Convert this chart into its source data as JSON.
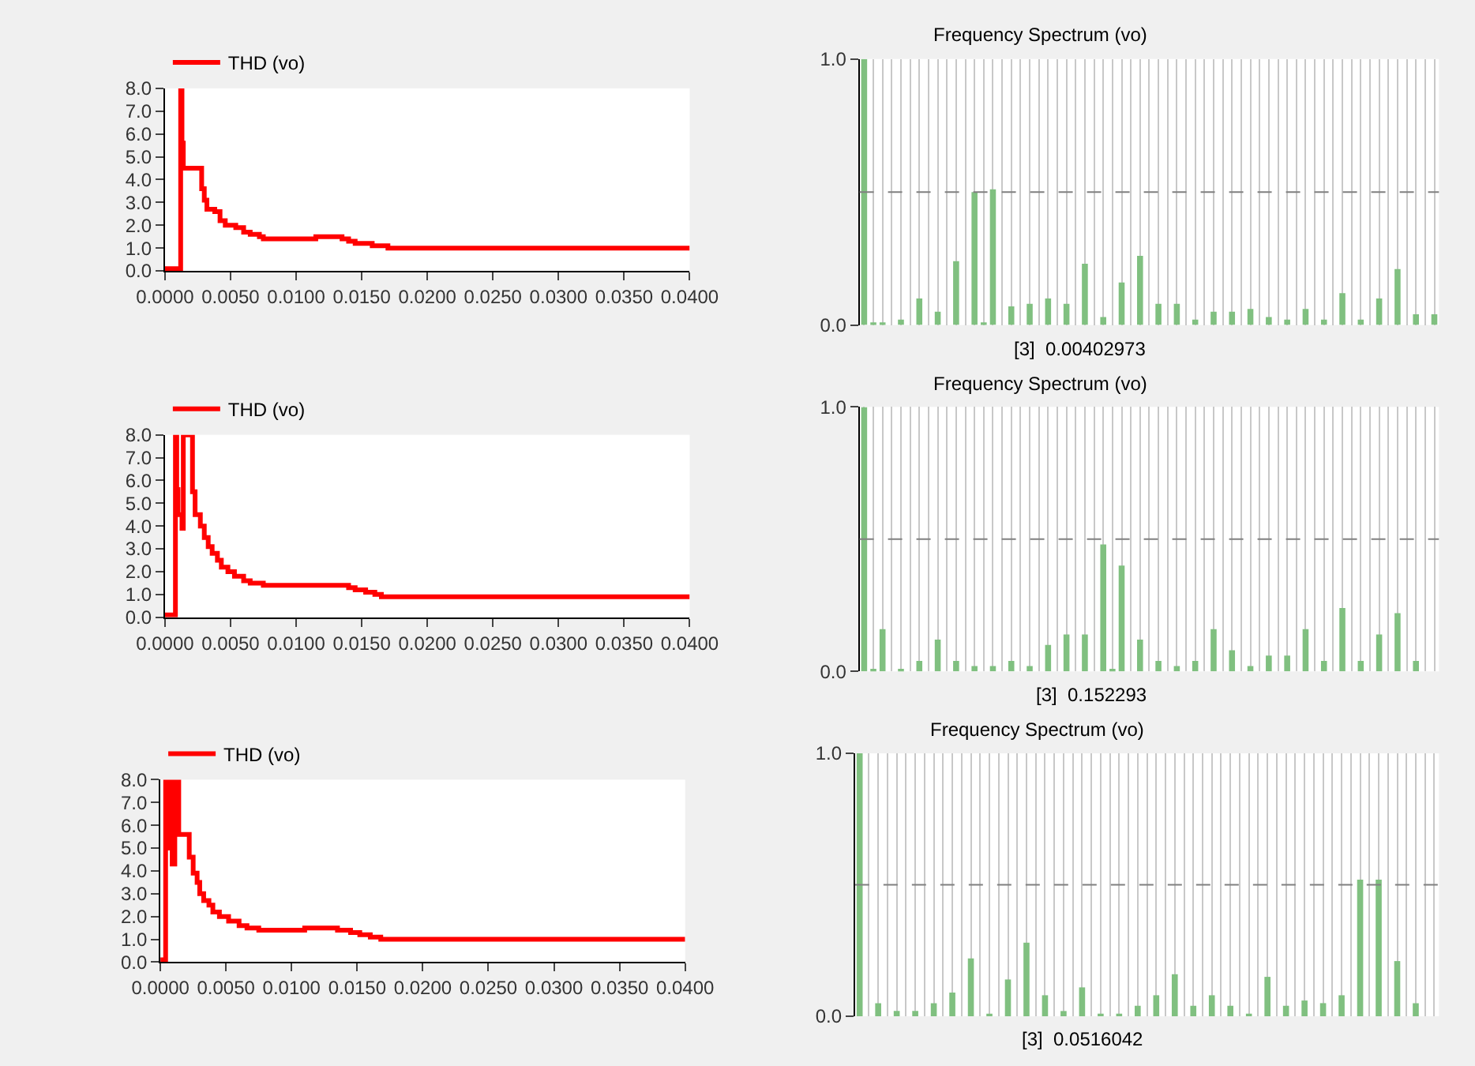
{
  "chart_data": [
    {
      "type": "step",
      "legend": "top left",
      "xlim": [
        0,
        0.04
      ],
      "ylim": [
        0,
        8
      ],
      "xticks": [
        {
          "value": 0,
          "label": "0.0000"
        },
        {
          "value": 0.005,
          "label": "0.0050"
        },
        {
          "value": 0.01,
          "label": "0.0100"
        },
        {
          "value": 0.015,
          "label": "0.0150"
        },
        {
          "value": 0.02,
          "label": "0.0200"
        },
        {
          "value": 0.025,
          "label": "0.0250"
        },
        {
          "value": 0.03,
          "label": "0.0300"
        },
        {
          "value": 0.035,
          "label": "0.0350"
        },
        {
          "value": 0.04,
          "label": "0.0400"
        }
      ],
      "yticks": [
        {
          "value": 0,
          "label": "0.0"
        },
        {
          "value": 1,
          "label": "1.0"
        },
        {
          "value": 2,
          "label": "2.0"
        },
        {
          "value": 3,
          "label": "3.0"
        },
        {
          "value": 4,
          "label": "4.0"
        },
        {
          "value": 5,
          "label": "5.0"
        },
        {
          "value": 6,
          "label": "6.0"
        },
        {
          "value": 7,
          "label": "7.0"
        },
        {
          "value": 8,
          "label": "8.0"
        }
      ],
      "series": [
        {
          "name": "THD (vo)",
          "color": "#ff0000",
          "x": [
            0,
            0.0012,
            0.0013,
            0.0014,
            0.0026,
            0.0028,
            0.003,
            0.0032,
            0.0038,
            0.0042,
            0.0046,
            0.0054,
            0.006,
            0.0065,
            0.0072,
            0.0075,
            0.0115,
            0.0135,
            0.014,
            0.0145,
            0.0158,
            0.017,
            0.04
          ],
          "values": [
            0.1,
            7.9,
            5.6,
            4.5,
            4.5,
            3.6,
            3.1,
            2.7,
            2.6,
            2.2,
            2.0,
            1.9,
            1.7,
            1.6,
            1.5,
            1.4,
            1.5,
            1.4,
            1.3,
            1.2,
            1.1,
            1.0,
            1.0
          ]
        }
      ]
    },
    {
      "type": "bar",
      "title": "Frequency Spectrum (vo)",
      "color": "#80c080",
      "ylim": [
        0,
        1
      ],
      "yticks": [
        {
          "value": 0,
          "label": "0.0"
        },
        {
          "value": 1,
          "label": "1.0"
        }
      ],
      "grid": "x",
      "tick_labels": "y",
      "categories": [
        null,
        null,
        null,
        null,
        null,
        null,
        null,
        null,
        null,
        null,
        null,
        null,
        null,
        null,
        null,
        null,
        null,
        null,
        null,
        null,
        null,
        null,
        null,
        null,
        null,
        null,
        null,
        null,
        null,
        null,
        null,
        null,
        null,
        null,
        null,
        null,
        null,
        null,
        null,
        null,
        null,
        null,
        null,
        null,
        null,
        null,
        null,
        null,
        null,
        null,
        null,
        null,
        null,
        null,
        null,
        null,
        null,
        null,
        null,
        null,
        null,
        null,
        null
      ],
      "values": [
        1.0,
        0.01,
        0.01,
        0,
        0.02,
        0,
        0.1,
        0,
        0.05,
        0,
        0.24,
        0,
        0.5,
        0.01,
        0.51,
        0,
        0.07,
        0,
        0.08,
        0,
        0.1,
        0,
        0.08,
        0,
        0.23,
        0,
        0.03,
        0,
        0.16,
        0,
        0.26,
        0,
        0.08,
        0,
        0.08,
        0,
        0.02,
        0,
        0.05,
        0,
        0.05,
        0,
        0.06,
        0,
        0.03,
        0,
        0.02,
        0,
        0.06,
        0,
        0.02,
        0,
        0.12,
        0,
        0.02,
        0,
        0.1,
        0,
        0.21,
        0,
        0.04,
        0,
        0.04
      ],
      "ref_lines": [
        {
          "axis": "y",
          "value": 0.5,
          "color": "#808080",
          "line_style": "dashed"
        }
      ],
      "annotations": [
        "[3]  0.00402973"
      ]
    },
    {
      "type": "step",
      "legend": "top left",
      "xlim": [
        0,
        0.04
      ],
      "ylim": [
        0,
        8
      ],
      "xticks": [
        {
          "value": 0,
          "label": "0.0000"
        },
        {
          "value": 0.005,
          "label": "0.0050"
        },
        {
          "value": 0.01,
          "label": "0.0100"
        },
        {
          "value": 0.015,
          "label": "0.0150"
        },
        {
          "value": 0.02,
          "label": "0.0200"
        },
        {
          "value": 0.025,
          "label": "0.0250"
        },
        {
          "value": 0.03,
          "label": "0.0300"
        },
        {
          "value": 0.035,
          "label": "0.0350"
        },
        {
          "value": 0.04,
          "label": "0.0400"
        }
      ],
      "yticks": [
        {
          "value": 0,
          "label": "0.0"
        },
        {
          "value": 1,
          "label": "1.0"
        },
        {
          "value": 2,
          "label": "2.0"
        },
        {
          "value": 3,
          "label": "3.0"
        },
        {
          "value": 4,
          "label": "4.0"
        },
        {
          "value": 5,
          "label": "5.0"
        },
        {
          "value": 6,
          "label": "6.0"
        },
        {
          "value": 7,
          "label": "7.0"
        },
        {
          "value": 8,
          "label": "8.0"
        }
      ],
      "series": [
        {
          "name": "THD (vo)",
          "color": "#ff0000",
          "x": [
            0,
            0.0008,
            0.0009,
            0.001,
            0.0013,
            0.0014,
            0.002,
            0.0021,
            0.0023,
            0.0027,
            0.003,
            0.0033,
            0.0036,
            0.004,
            0.0043,
            0.0048,
            0.0053,
            0.006,
            0.0065,
            0.0075,
            0.0135,
            0.014,
            0.0145,
            0.0153,
            0.016,
            0.0165,
            0.04
          ],
          "values": [
            0.1,
            8.0,
            5.6,
            4.5,
            3.9,
            8.0,
            8.0,
            5.5,
            4.5,
            4.0,
            3.5,
            3.1,
            2.8,
            2.5,
            2.2,
            2.0,
            1.8,
            1.6,
            1.5,
            1.4,
            1.4,
            1.3,
            1.2,
            1.1,
            1.0,
            0.9,
            0.9
          ]
        }
      ]
    },
    {
      "type": "bar",
      "title": "Frequency Spectrum (vo)",
      "color": "#80c080",
      "ylim": [
        0,
        1
      ],
      "yticks": [
        {
          "value": 0,
          "label": "0.0"
        },
        {
          "value": 1,
          "label": "1.0"
        }
      ],
      "grid": "x",
      "tick_labels": "y",
      "categories": [
        null,
        null,
        null,
        null,
        null,
        null,
        null,
        null,
        null,
        null,
        null,
        null,
        null,
        null,
        null,
        null,
        null,
        null,
        null,
        null,
        null,
        null,
        null,
        null,
        null,
        null,
        null,
        null,
        null,
        null,
        null,
        null,
        null,
        null,
        null,
        null,
        null,
        null,
        null,
        null,
        null,
        null,
        null,
        null,
        null,
        null,
        null,
        null,
        null,
        null,
        null,
        null,
        null,
        null,
        null,
        null,
        null,
        null,
        null,
        null,
        null,
        null,
        null
      ],
      "values": [
        1.0,
        0.01,
        0.16,
        0,
        0.01,
        0,
        0.04,
        0,
        0.12,
        0,
        0.04,
        0,
        0.02,
        0,
        0.02,
        0,
        0.04,
        0,
        0.02,
        0,
        0.1,
        0,
        0.14,
        0,
        0.14,
        0,
        0.48,
        0.01,
        0.4,
        0,
        0.12,
        0,
        0.04,
        0,
        0.02,
        0,
        0.04,
        0,
        0.16,
        0,
        0.08,
        0,
        0.02,
        0,
        0.06,
        0,
        0.06,
        0,
        0.16,
        0,
        0.04,
        0,
        0.24,
        0,
        0.04,
        0,
        0.14,
        0,
        0.22,
        0,
        0.04,
        0,
        0
      ],
      "ref_lines": [
        {
          "axis": "y",
          "value": 0.5,
          "color": "#808080",
          "line_style": "dashed"
        }
      ],
      "annotations": [
        "[3]  0.152293"
      ]
    },
    {
      "type": "step",
      "legend": "top left",
      "xlim": [
        0,
        0.04
      ],
      "ylim": [
        0,
        8
      ],
      "xticks": [
        {
          "value": 0,
          "label": "0.0000"
        },
        {
          "value": 0.005,
          "label": "0.0050"
        },
        {
          "value": 0.01,
          "label": "0.0100"
        },
        {
          "value": 0.015,
          "label": "0.0150"
        },
        {
          "value": 0.02,
          "label": "0.0200"
        },
        {
          "value": 0.025,
          "label": "0.0250"
        },
        {
          "value": 0.03,
          "label": "0.0300"
        },
        {
          "value": 0.035,
          "label": "0.0350"
        },
        {
          "value": 0.04,
          "label": "0.0400"
        }
      ],
      "yticks": [
        {
          "value": 0,
          "label": "0.0"
        },
        {
          "value": 1,
          "label": "1.0"
        },
        {
          "value": 2,
          "label": "2.0"
        },
        {
          "value": 3,
          "label": "3.0"
        },
        {
          "value": 4,
          "label": "4.0"
        },
        {
          "value": 5,
          "label": "5.0"
        },
        {
          "value": 6,
          "label": "6.0"
        },
        {
          "value": 7,
          "label": "7.0"
        },
        {
          "value": 8,
          "label": "8.0"
        }
      ],
      "series": [
        {
          "name": "THD (vo)",
          "color": "#ff0000",
          "x": [
            0,
            0.0004,
            0.0005,
            0.0007,
            0.0009,
            0.0011,
            0.0014,
            0.0021,
            0.0022,
            0.0025,
            0.0028,
            0.003,
            0.0033,
            0.0037,
            0.004,
            0.0045,
            0.0052,
            0.006,
            0.0066,
            0.0075,
            0.011,
            0.0135,
            0.0145,
            0.0152,
            0.016,
            0.0168,
            0.04
          ],
          "values": [
            0.1,
            8.0,
            5.0,
            8.0,
            4.3,
            8.0,
            5.6,
            5.6,
            4.6,
            3.9,
            3.5,
            3.0,
            2.7,
            2.5,
            2.2,
            2.0,
            1.8,
            1.6,
            1.5,
            1.4,
            1.5,
            1.4,
            1.3,
            1.2,
            1.1,
            1.0,
            1.0
          ]
        }
      ]
    },
    {
      "type": "bar",
      "title": "Frequency Spectrum (vo)",
      "color": "#80c080",
      "ylim": [
        0,
        1
      ],
      "yticks": [
        {
          "value": 0,
          "label": "0.0"
        },
        {
          "value": 1,
          "label": "1.0"
        }
      ],
      "grid": "x",
      "tick_labels": "y",
      "categories": [
        null,
        null,
        null,
        null,
        null,
        null,
        null,
        null,
        null,
        null,
        null,
        null,
        null,
        null,
        null,
        null,
        null,
        null,
        null,
        null,
        null,
        null,
        null,
        null,
        null,
        null,
        null,
        null,
        null,
        null,
        null,
        null,
        null,
        null,
        null,
        null,
        null,
        null,
        null,
        null,
        null,
        null,
        null,
        null,
        null,
        null,
        null,
        null,
        null,
        null,
        null,
        null,
        null,
        null,
        null,
        null,
        null,
        null,
        null,
        null,
        null,
        null,
        null
      ],
      "values": [
        1.0,
        0,
        0.05,
        0,
        0.02,
        0,
        0.02,
        0,
        0.05,
        0,
        0.09,
        0,
        0.22,
        0,
        0.01,
        0,
        0.14,
        0,
        0.28,
        0,
        0.08,
        0,
        0.02,
        0,
        0.11,
        0,
        0.01,
        0,
        0.01,
        0,
        0.04,
        0,
        0.08,
        0,
        0.16,
        0,
        0.04,
        0,
        0.08,
        0,
        0.04,
        0,
        0.01,
        0,
        0.15,
        0,
        0.04,
        0,
        0.06,
        0,
        0.05,
        0,
        0.08,
        0,
        0.52,
        0,
        0.52,
        0,
        0.21,
        0,
        0.05,
        0,
        0
      ],
      "ref_lines": [
        {
          "axis": "y",
          "value": 0.5,
          "color": "#808080",
          "line_style": "dashed"
        }
      ],
      "annotations": [
        "[3]  0.0516042"
      ]
    }
  ]
}
